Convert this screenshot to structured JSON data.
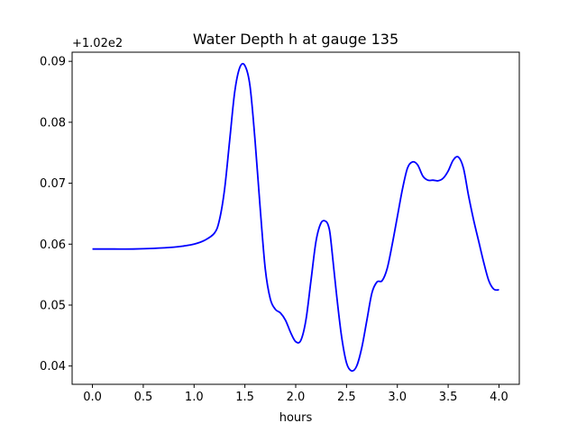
{
  "chart_data": {
    "type": "line",
    "title": "Water Depth h at gauge 135",
    "xlabel": "hours",
    "ylabel": "",
    "y_offset_label": "+1.02e2",
    "xlim": [
      -0.2,
      4.2
    ],
    "ylim": [
      0.037,
      0.0915
    ],
    "x_ticks": [
      0.0,
      0.5,
      1.0,
      1.5,
      2.0,
      2.5,
      3.0,
      3.5,
      4.0
    ],
    "x_tick_labels": [
      "0.0",
      "0.5",
      "1.0",
      "1.5",
      "2.0",
      "2.5",
      "3.0",
      "3.5",
      "4.0"
    ],
    "y_ticks": [
      0.04,
      0.05,
      0.06,
      0.07,
      0.08,
      0.09
    ],
    "y_tick_labels": [
      "0.04",
      "0.05",
      "0.06",
      "0.07",
      "0.08",
      "0.09"
    ],
    "grid": false,
    "series": [
      {
        "color": "#0000ff",
        "x": [
          0.0,
          0.2,
          0.4,
          0.6,
          0.8,
          0.9,
          1.0,
          1.1,
          1.2,
          1.25,
          1.3,
          1.35,
          1.4,
          1.45,
          1.5,
          1.55,
          1.6,
          1.65,
          1.7,
          1.75,
          1.8,
          1.85,
          1.9,
          1.95,
          2.0,
          2.05,
          2.1,
          2.15,
          2.2,
          2.25,
          2.3,
          2.33,
          2.35,
          2.4,
          2.45,
          2.5,
          2.55,
          2.6,
          2.65,
          2.7,
          2.75,
          2.8,
          2.85,
          2.9,
          2.95,
          3.0,
          3.05,
          3.1,
          3.15,
          3.2,
          3.25,
          3.3,
          3.35,
          3.4,
          3.45,
          3.5,
          3.55,
          3.6,
          3.65,
          3.7,
          3.75,
          3.8,
          3.85,
          3.9,
          3.95,
          4.0
        ],
        "values": [
          0.0592,
          0.0592,
          0.0592,
          0.0593,
          0.0595,
          0.0597,
          0.06,
          0.0606,
          0.0618,
          0.064,
          0.069,
          0.077,
          0.085,
          0.089,
          0.0893,
          0.086,
          0.077,
          0.066,
          0.056,
          0.051,
          0.0493,
          0.0487,
          0.0475,
          0.0455,
          0.044,
          0.0442,
          0.0475,
          0.054,
          0.0605,
          0.0635,
          0.0637,
          0.0625,
          0.06,
          0.052,
          0.045,
          0.0405,
          0.0392,
          0.04,
          0.043,
          0.0475,
          0.052,
          0.0538,
          0.054,
          0.056,
          0.06,
          0.0645,
          0.069,
          0.0725,
          0.0735,
          0.073,
          0.0712,
          0.0705,
          0.0705,
          0.0704,
          0.0708,
          0.072,
          0.0738,
          0.0743,
          0.0725,
          0.068,
          0.064,
          0.0605,
          0.057,
          0.054,
          0.0526,
          0.0525
        ]
      }
    ]
  }
}
